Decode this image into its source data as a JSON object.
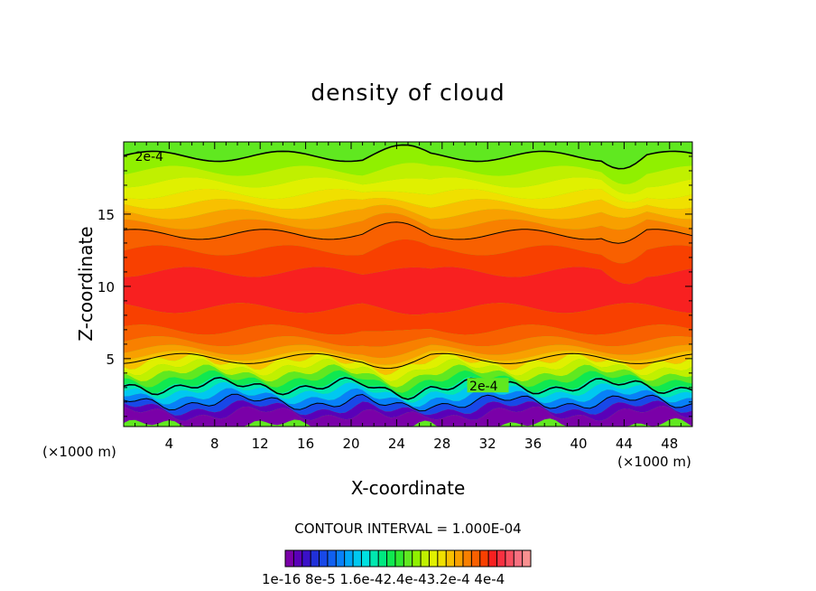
{
  "chart_data": {
    "type": "heatmap",
    "title": "density of cloud",
    "xlabel": "X-coordinate",
    "ylabel": "Z-coordinate",
    "x_unit_left": "(×1000 m)",
    "x_unit_right": "(×1000 m)",
    "xlim": [
      0,
      50
    ],
    "ylim": [
      0.3,
      20
    ],
    "x_ticks": [
      "4",
      "8",
      "12",
      "16",
      "20",
      "24",
      "28",
      "32",
      "36",
      "40",
      "44",
      "48"
    ],
    "y_ticks": [
      "5",
      "10",
      "15"
    ],
    "contour_interval_text": "CONTOUR INTERVAL = 1.000E-04",
    "contour_labels": [
      "2e-4",
      "2e-4"
    ],
    "colorbar": {
      "labels_text": "1e-16 8e-5 1.6e-42.4e-43.2e-4 4e-4",
      "colors": [
        "#7a00a8",
        "#5a00b8",
        "#3a10c8",
        "#2030d8",
        "#1848e8",
        "#1060f0",
        "#0880f8",
        "#00a8f8",
        "#00c8f0",
        "#00e0e0",
        "#00e8b0",
        "#00e880",
        "#10e850",
        "#30e830",
        "#60e820",
        "#90f000",
        "#c0f000",
        "#e0f000",
        "#f0e000",
        "#f8c000",
        "#f8a000",
        "#f88000",
        "#f86000",
        "#f84000",
        "#f82020",
        "#f83040",
        "#f85060",
        "#f87080",
        "#f89090"
      ]
    },
    "profile_bands": [
      {
        "z": 0.3,
        "level": 0
      },
      {
        "z": 1.2,
        "level": 1
      },
      {
        "z": 1.6,
        "level": 4
      },
      {
        "z": 2.0,
        "level": 6
      },
      {
        "z": 2.4,
        "level": 8
      },
      {
        "z": 2.8,
        "level": 10
      },
      {
        "z": 3.2,
        "level": 12
      },
      {
        "z": 3.6,
        "level": 14
      },
      {
        "z": 4.0,
        "level": 16
      },
      {
        "z": 4.4,
        "level": 17
      },
      {
        "z": 4.8,
        "level": 19
      },
      {
        "z": 5.2,
        "level": 20
      },
      {
        "z": 5.6,
        "level": 21
      },
      {
        "z": 6.2,
        "level": 22
      },
      {
        "z": 7.0,
        "level": 23
      },
      {
        "z": 8.5,
        "level": 24
      },
      {
        "z": 11.0,
        "level": 23
      },
      {
        "z": 12.5,
        "level": 22
      },
      {
        "z": 13.6,
        "level": 21
      },
      {
        "z": 14.3,
        "level": 20
      },
      {
        "z": 15.0,
        "level": 19
      },
      {
        "z": 15.7,
        "level": 18
      },
      {
        "z": 16.4,
        "level": 17
      },
      {
        "z": 17.2,
        "level": 16
      },
      {
        "z": 18.0,
        "level": 15
      },
      {
        "z": 19.0,
        "level": 14
      }
    ]
  }
}
